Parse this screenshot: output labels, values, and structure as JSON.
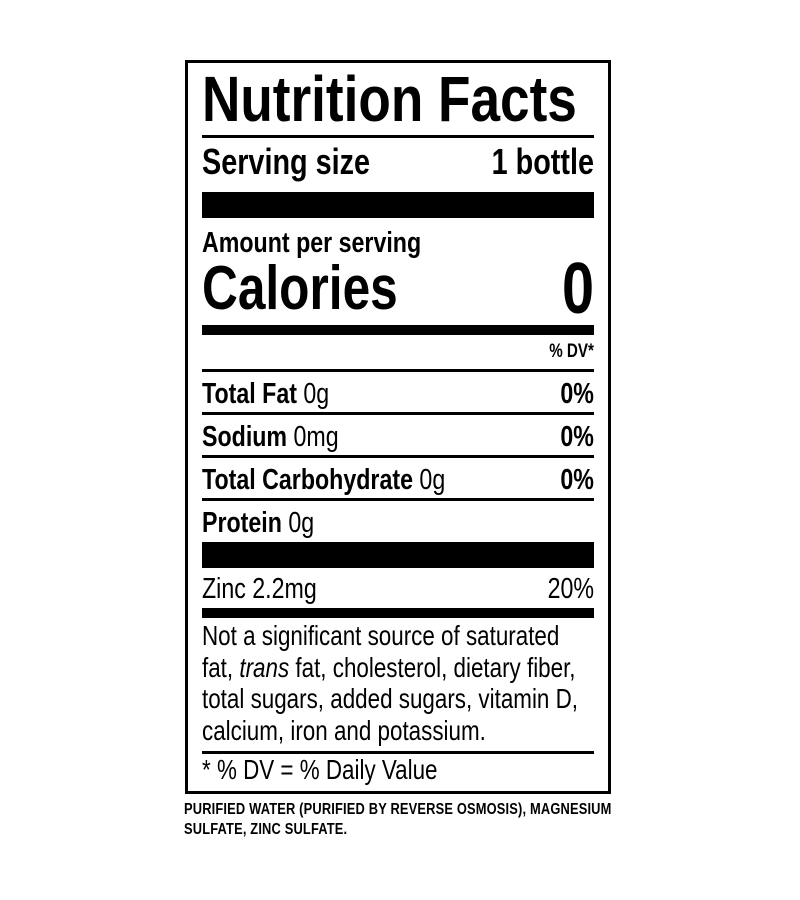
{
  "label": {
    "title": "Nutrition Facts",
    "serving_size_label": "Serving size",
    "serving_size_value": "1 bottle",
    "amount_per_serving": "Amount per serving",
    "calories_label": "Calories",
    "calories_value": "0",
    "dv_header": "% DV*",
    "nutrients": [
      {
        "name": "Total Fat",
        "amount": "0g",
        "dv": "0%"
      },
      {
        "name": "Sodium",
        "amount": "0mg",
        "dv": "0%"
      },
      {
        "name": "Total Carbohydrate",
        "amount": "0g",
        "dv": "0%"
      },
      {
        "name": "Protein",
        "amount": "0g",
        "dv": ""
      }
    ],
    "zinc": {
      "text": "Zinc 2.2mg",
      "dv": "20%"
    },
    "note_italic": "trans",
    "note_start": "Not a significant source of saturated fat, ",
    "note_end": " fat, cholesterol, dietary fiber, total sugars, added sugars, vitamin D, calcium, iron and potassium.",
    "footnote": "* % DV = % Daily Value"
  },
  "ingredients": "PURIFIED WATER (PURIFIED BY REVERSE OSMOSIS), MAGNESIUM SULFATE, ZINC SULFATE."
}
